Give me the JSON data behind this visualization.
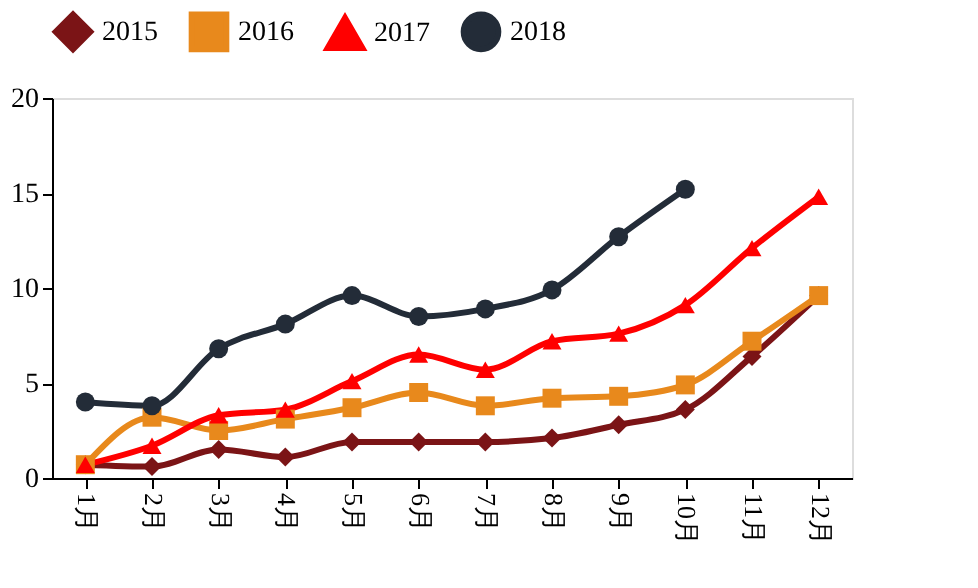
{
  "chart_data": {
    "type": "line",
    "categories": [
      "1月",
      "2月",
      "3月",
      "4月",
      "5月",
      "6月",
      "7月",
      "8月",
      "9月",
      "10月",
      "11月",
      "12月"
    ],
    "ylim": [
      0,
      20
    ],
    "yticks": [
      0,
      5,
      10,
      15,
      20
    ],
    "grid": false,
    "legend": "top",
    "line_style": "solid",
    "series": [
      {
        "name": "2015",
        "color": "#7b1416",
        "marker": "diamond",
        "values": [
          0.7,
          0.6,
          1.5,
          1.1,
          1.9,
          1.9,
          1.9,
          2.1,
          2.8,
          3.6,
          6.4,
          9.6
        ]
      },
      {
        "name": "2016",
        "color": "#e8891c",
        "marker": "square",
        "values": [
          0.7,
          3.2,
          2.5,
          3.1,
          3.7,
          4.5,
          3.8,
          4.2,
          4.3,
          4.9,
          7.2,
          9.6
        ]
      },
      {
        "name": "2017",
        "color": "#ff0000",
        "marker": "triangle",
        "values": [
          0.7,
          1.7,
          3.3,
          3.6,
          5.1,
          6.5,
          5.7,
          7.2,
          7.6,
          9.1,
          12.1,
          14.8
        ]
      },
      {
        "name": "2018",
        "color": "#232c38",
        "marker": "circle",
        "values": [
          4.0,
          3.8,
          6.8,
          8.1,
          9.6,
          8.5,
          8.9,
          9.9,
          12.7,
          15.2,
          null,
          null
        ]
      }
    ]
  }
}
